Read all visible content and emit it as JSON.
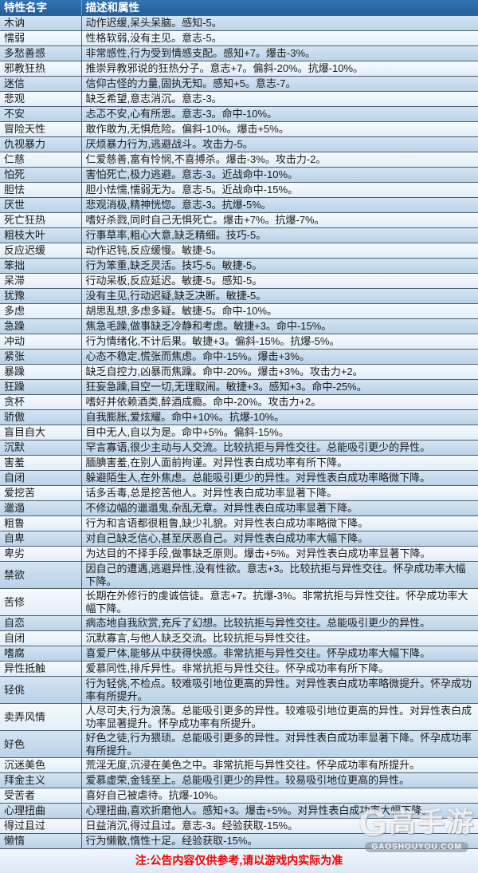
{
  "table": {
    "headers": [
      "特性名字",
      "描述和属性"
    ],
    "rows": [
      {
        "name": "木讷",
        "desc": "动作迟缓,呆头呆脑。感知-5。"
      },
      {
        "name": "懦弱",
        "desc": "性格软弱,没有主见。意志-5。"
      },
      {
        "name": "多愁善感",
        "desc": "非常感性,行为受到情感支配。感知+7。爆击-3%。"
      },
      {
        "name": "邪教狂热",
        "desc": "推崇异教邪说的狂热分子。意志+7。偏斜-20%。抗爆-10%。"
      },
      {
        "name": "迷信",
        "desc": "信仰古怪的力量,固执无知。感知+5。意志-7。"
      },
      {
        "name": "悲观",
        "desc": "缺乏希望,意志消沉。意志-3。"
      },
      {
        "name": "不安",
        "desc": "忐忑不安,心有所思。意志-3。命中-10%。"
      },
      {
        "name": "冒险天性",
        "desc": "敢作敢为,无惧危险。偏斜-10%。爆击+5%。"
      },
      {
        "name": "仇视暴力",
        "desc": "厌烦暴力行为,逃避战斗。攻击力-5。"
      },
      {
        "name": "仁慈",
        "desc": "仁爱慈善,富有怜悯,不喜搏杀。爆击-3%。攻击力-2。"
      },
      {
        "name": "怕死",
        "desc": "害怕死亡,极力逃避。意志-3。近战命中-10%。"
      },
      {
        "name": "胆怯",
        "desc": "胆小怯懦,懦弱无为。意志-5。近战命中-15%。"
      },
      {
        "name": "厌世",
        "desc": "悲观消极,精神恍惚。意志-3。抗爆-5%。"
      },
      {
        "name": "死亡狂热",
        "desc": "嗜好杀戮,同时自己无惧死亡。爆击+7%。抗爆-7%。"
      },
      {
        "name": "粗枝大叶",
        "desc": "行事草率,粗心大意,缺乏精细。技巧-5。"
      },
      {
        "name": "反应迟缓",
        "desc": "动作迟钝,反应缓慢。敏捷-5。"
      },
      {
        "name": "笨拙",
        "desc": "行为笨重,缺乏灵活。技巧-5。敏捷-5。"
      },
      {
        "name": "呆滞",
        "desc": "行动呆板,反应延迟。敏捷-5。感知-5。"
      },
      {
        "name": "犹豫",
        "desc": "没有主见,行动迟疑,缺乏决断。敏捷-5。"
      },
      {
        "name": "多虑",
        "desc": "胡思乱想,多虑多疑。敏捷-5。命中-10%。"
      },
      {
        "name": "急躁",
        "desc": "焦急毛躁,做事缺乏冷静和考虑。敏捷+3。命中-15%。"
      },
      {
        "name": "冲动",
        "desc": "行为情绪化,不计后果。敏捷+3。偏斜-15%。抗爆-5%。"
      },
      {
        "name": "紧张",
        "desc": "心态不稳定,慌张而焦虑。命中-15%。爆击+3%。"
      },
      {
        "name": "暴躁",
        "desc": "缺乏自控力,凶暴而焦躁。命中-20%。爆击+3%。攻击力+2。"
      },
      {
        "name": "狂躁",
        "desc": "狂妄急躁,目空一切,无理取闹。敏捷+3。感知+3。命中-25%。"
      },
      {
        "name": "贪杯",
        "desc": "嗜好并依赖酒类,醉酒成瘾。命中-20%。攻击力+2。"
      },
      {
        "name": "骄傲",
        "desc": "自我膨胀,爱炫耀。命中+10%。抗爆-10%。"
      },
      {
        "name": "盲目自大",
        "desc": "目中无人,自以为是。命中+5%。偏斜-15%。"
      },
      {
        "name": "沉默",
        "desc": "罕言寡语,很少主动与人交流。比较抗拒与异性交往。总能吸引更少的异性。"
      },
      {
        "name": "害羞",
        "desc": "腼腆害羞,在别人面前拘谨。对异性表白成功率有所下降。"
      },
      {
        "name": "自闭",
        "desc": "躲避陌生人,在外焦虑。总能吸引更少的异性。对异性表白成功率略微下降。"
      },
      {
        "name": "爱挖苦",
        "desc": "话多舌毒,总是挖苦他人。对异性表白成功率显著下降。"
      },
      {
        "name": "邋遢",
        "desc": "不修边幅的邋遢鬼,杂乱无章。对异性表白成功率显著下降。"
      },
      {
        "name": "粗鲁",
        "desc": "行为和言语都很粗鲁,缺少礼貌。对异性表白成功率略微下降。"
      },
      {
        "name": "自卑",
        "desc": "对自己缺乏信心,甚至厌恶自己。对异性表白成功率大幅下降。"
      },
      {
        "name": "卑劣",
        "desc": "为达目的不择手段,做事缺乏原则。爆击+5%。对异性表白成功率显著下降。"
      },
      {
        "name": "禁欲",
        "desc": "因自己的遭遇,逃避异性,没有性欲。意志+3。比较抗拒与异性交往。怀孕成功率大幅下降。"
      },
      {
        "name": "苦修",
        "desc": "长期在外修行的虔诚信徒。意志+7。抗爆-3%。非常抗拒与异性交往。怀孕成功率大幅下降。"
      },
      {
        "name": "自恋",
        "desc": "病态地自我欣赏,充斥了幻想。比较抗拒与异性交往。总能吸引更少的异性。"
      },
      {
        "name": "自闭",
        "desc": "沉默寡言,与他人缺乏交流。比较抗拒与异性交往。"
      },
      {
        "name": "嗜腐",
        "desc": "喜爱尸体,能够从中获得快感。非常抗拒与异性交往。怀孕成功率大幅下降。"
      },
      {
        "name": "异性抵触",
        "desc": "爱慕同性,排斥异性。非常抗拒与异性交往。怀孕成功率有所下降。"
      },
      {
        "name": "轻佻",
        "desc": "行为轻佻,不检点。较难吸引地位更高的异性。对异性表白成功率略微提升。怀孕成功率有所提升。"
      },
      {
        "name": "卖弄风情",
        "desc": "人尽可夫,行为浪荡。总能吸引更多的异性。较难吸引地位更高的异性。对异性表白成功率显著提升。怀孕成功率有所提升。"
      },
      {
        "name": "好色",
        "desc": "好色之徒,行为猥琐。总能吸引更多的异性。对异性表白成功率显著下降。怀孕成功率有所提升。"
      },
      {
        "name": "沉迷美色",
        "desc": "荒淫无度,沉浸在美色之中。非常抗拒与异性交往。怀孕成功率有所提升。"
      },
      {
        "name": "拜金主义",
        "desc": "爱慕虚荣,金钱至上。总能吸引更少的异性。较易吸引地位更高的异性。"
      },
      {
        "name": "受苦者",
        "desc": "喜好自己被虐待。抗爆-10%。"
      },
      {
        "name": "心理扭曲",
        "desc": "心理扭曲,喜欢折磨他人。感知+3。爆击+5%。对异性表白成功率大幅下降。"
      },
      {
        "name": "得过且过",
        "desc": "日益消沉,得过且过。意志-3。经验获取-15%。"
      },
      {
        "name": "懒惰",
        "desc": "行为懒散,惰性十足。经验获取-15%。"
      }
    ]
  },
  "notice": {
    "text": "注:公告内容仅供参考,请以游戏内实际为准"
  },
  "watermark": {
    "logo_g": "G",
    "logo_text": "高手游",
    "site": "GAOSHOUYOU.COM"
  },
  "colors": {
    "header_bg": "#2e74b5",
    "row_blue": "#c6dcef",
    "row_white": "#eef5fb",
    "border": "#4e5e6c",
    "notice_red": "#f00000"
  }
}
